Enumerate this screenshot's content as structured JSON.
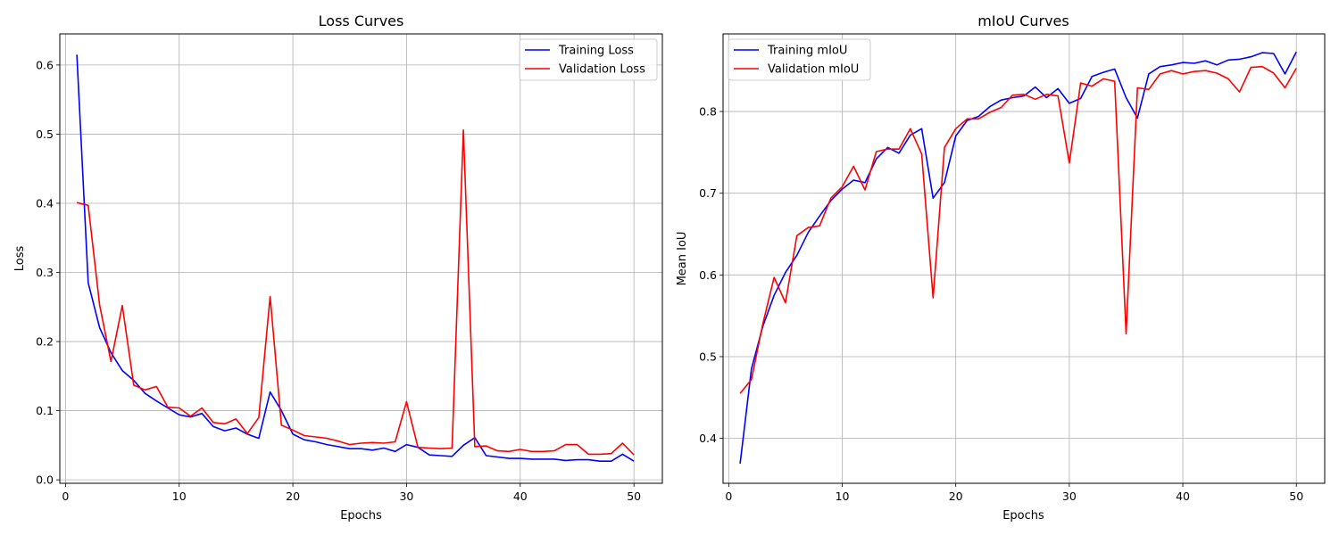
{
  "colors": {
    "training": "#0000ff",
    "validation": "#ff0000",
    "grid": "#b0b0b0"
  },
  "chart_data": [
    {
      "type": "line",
      "title": "Loss Curves",
      "xlabel": "Epochs",
      "ylabel": "Loss",
      "xlim": [
        -0.5,
        52.5
      ],
      "ylim": [
        -0.005,
        0.645
      ],
      "xticks": [
        0,
        10,
        20,
        30,
        40,
        50
      ],
      "xtick_labels": [
        "0",
        "10",
        "20",
        "30",
        "40",
        "50"
      ],
      "yticks": [
        0.0,
        0.1,
        0.2,
        0.3,
        0.4,
        0.5,
        0.6
      ],
      "ytick_labels": [
        "0.0",
        "0.1",
        "0.2",
        "0.3",
        "0.4",
        "0.5",
        "0.6"
      ],
      "grid": true,
      "legend": "upper right",
      "x": [
        1,
        2,
        3,
        4,
        5,
        6,
        7,
        8,
        9,
        10,
        11,
        12,
        13,
        14,
        15,
        16,
        17,
        18,
        19,
        20,
        21,
        22,
        23,
        24,
        25,
        26,
        27,
        28,
        29,
        30,
        31,
        32,
        33,
        34,
        35,
        36,
        37,
        38,
        39,
        40,
        41,
        42,
        43,
        44,
        45,
        46,
        47,
        48,
        49,
        50
      ],
      "series": [
        {
          "name": "Training Loss",
          "color": "#0000ff",
          "values": [
            0.615,
            0.285,
            0.22,
            0.184,
            0.158,
            0.144,
            0.125,
            0.114,
            0.104,
            0.094,
            0.091,
            0.096,
            0.077,
            0.071,
            0.075,
            0.066,
            0.06,
            0.127,
            0.1,
            0.066,
            0.058,
            0.055,
            0.051,
            0.048,
            0.045,
            0.045,
            0.043,
            0.046,
            0.041,
            0.051,
            0.047,
            0.036,
            0.035,
            0.034,
            0.05,
            0.061,
            0.035,
            0.033,
            0.031,
            0.031,
            0.03,
            0.03,
            0.03,
            0.028,
            0.029,
            0.029,
            0.027,
            0.027,
            0.037,
            0.027
          ]
        },
        {
          "name": "Validation Loss",
          "color": "#ff0000",
          "values": [
            0.401,
            0.397,
            0.253,
            0.171,
            0.252,
            0.137,
            0.13,
            0.135,
            0.105,
            0.104,
            0.092,
            0.104,
            0.083,
            0.081,
            0.088,
            0.067,
            0.09,
            0.265,
            0.079,
            0.072,
            0.064,
            0.062,
            0.06,
            0.056,
            0.051,
            0.053,
            0.054,
            0.053,
            0.055,
            0.113,
            0.047,
            0.046,
            0.045,
            0.046,
            0.506,
            0.048,
            0.049,
            0.042,
            0.041,
            0.044,
            0.041,
            0.041,
            0.042,
            0.051,
            0.051,
            0.037,
            0.037,
            0.038,
            0.053,
            0.036
          ]
        }
      ]
    },
    {
      "type": "line",
      "title": "mIoU Curves",
      "xlabel": "Epochs",
      "ylabel": "Mean IoU",
      "xlim": [
        -0.5,
        52.5
      ],
      "ylim": [
        0.345,
        0.895
      ],
      "xticks": [
        0,
        10,
        20,
        30,
        40,
        50
      ],
      "xtick_labels": [
        "0",
        "10",
        "20",
        "30",
        "40",
        "50"
      ],
      "yticks": [
        0.4,
        0.5,
        0.6,
        0.7,
        0.8
      ],
      "ytick_labels": [
        "0.4",
        "0.5",
        "0.6",
        "0.7",
        "0.8"
      ],
      "grid": true,
      "legend": "upper left",
      "x": [
        1,
        2,
        3,
        4,
        5,
        6,
        7,
        8,
        9,
        10,
        11,
        12,
        13,
        14,
        15,
        16,
        17,
        18,
        19,
        20,
        21,
        22,
        23,
        24,
        25,
        26,
        27,
        28,
        29,
        30,
        31,
        32,
        33,
        34,
        35,
        36,
        37,
        38,
        39,
        40,
        41,
        42,
        43,
        44,
        45,
        46,
        47,
        48,
        49,
        50
      ],
      "series": [
        {
          "name": "Training mIoU",
          "color": "#0000ff",
          "values": [
            0.369,
            0.485,
            0.537,
            0.575,
            0.603,
            0.624,
            0.652,
            0.672,
            0.691,
            0.705,
            0.716,
            0.713,
            0.742,
            0.756,
            0.749,
            0.771,
            0.779,
            0.694,
            0.713,
            0.77,
            0.789,
            0.794,
            0.806,
            0.814,
            0.817,
            0.819,
            0.83,
            0.817,
            0.828,
            0.81,
            0.816,
            0.843,
            0.848,
            0.852,
            0.817,
            0.792,
            0.846,
            0.855,
            0.857,
            0.86,
            0.859,
            0.862,
            0.857,
            0.863,
            0.864,
            0.867,
            0.872,
            0.871,
            0.846,
            0.873
          ]
        },
        {
          "name": "Validation mIoU",
          "color": "#ff0000",
          "values": [
            0.455,
            0.472,
            0.54,
            0.597,
            0.566,
            0.648,
            0.658,
            0.66,
            0.694,
            0.708,
            0.733,
            0.704,
            0.751,
            0.754,
            0.754,
            0.779,
            0.748,
            0.572,
            0.756,
            0.779,
            0.791,
            0.791,
            0.799,
            0.805,
            0.82,
            0.821,
            0.815,
            0.821,
            0.819,
            0.737,
            0.835,
            0.831,
            0.84,
            0.837,
            0.528,
            0.829,
            0.827,
            0.846,
            0.85,
            0.846,
            0.849,
            0.85,
            0.847,
            0.84,
            0.824,
            0.854,
            0.855,
            0.847,
            0.829,
            0.853
          ]
        }
      ]
    }
  ]
}
